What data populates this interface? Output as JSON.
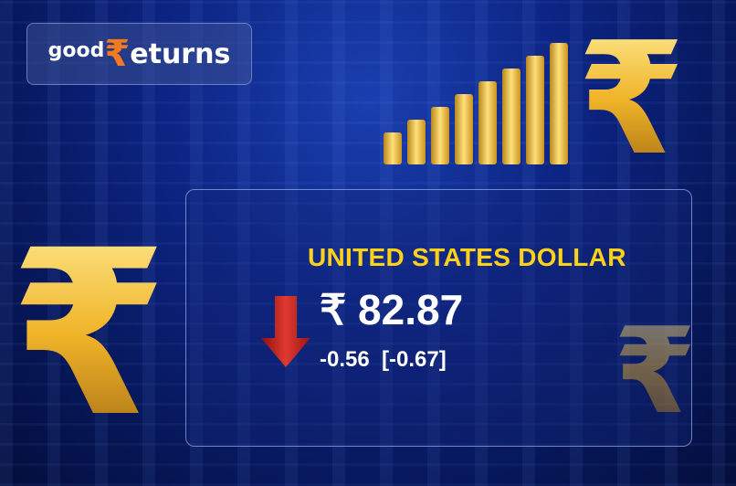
{
  "brand": {
    "logo_text": "goodReturns",
    "accent": "#f47a1f"
  },
  "currency": {
    "name": "UNITED STATES DOLLAR",
    "price": "₹ 82.87",
    "change": "-0.56  [-0.67]",
    "direction": "down",
    "name_color": "#ffd21a",
    "arrow_color": "#c0201e"
  },
  "decor": {
    "symbol": "₹",
    "bar_levels": [
      0.25,
      0.35,
      0.45,
      0.55,
      0.65,
      0.75,
      0.85,
      0.95
    ]
  }
}
